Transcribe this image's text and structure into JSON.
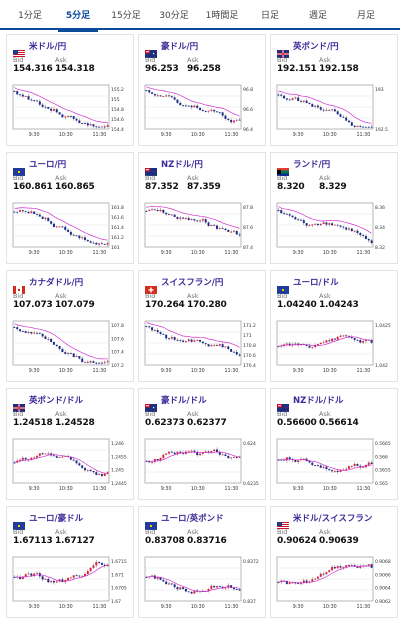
{
  "tabs": [
    {
      "label": "1分足",
      "active": false
    },
    {
      "label": "5分足",
      "active": true
    },
    {
      "label": "15分足",
      "active": false
    },
    {
      "label": "30分足",
      "active": false
    },
    {
      "label": "1時間足",
      "active": false
    },
    {
      "label": "日足",
      "active": false
    },
    {
      "label": "週足",
      "active": false
    },
    {
      "label": "月足",
      "active": false
    }
  ],
  "colors": {
    "accent": "#0a4a9c",
    "pair_text": "#3a2a9a",
    "up": "#e0203a",
    "down": "#1a2a8a",
    "ma": "#d030d0"
  },
  "cards": [
    {
      "pair": "米ドル/円",
      "flag": "us",
      "bid": "154.316",
      "ask": "154.318",
      "times": [
        "9:30",
        "10:30",
        "11:30"
      ],
      "yticks": [
        "155.2",
        "155",
        "154.8",
        "154.6",
        "154.4"
      ],
      "trend": "down"
    },
    {
      "pair": "豪ドル/円",
      "flag": "au",
      "bid": "96.253",
      "ask": "96.258",
      "times": [
        "9:30",
        "10:30",
        "11:30"
      ],
      "yticks": [
        "96.8",
        "96.6",
        "96.4"
      ],
      "trend": "down"
    },
    {
      "pair": "英ポンド/円",
      "flag": "gb",
      "bid": "192.151",
      "ask": "192.158",
      "times": [
        "9:30",
        "10:30",
        "11:30"
      ],
      "yticks": [
        "193",
        "192.5"
      ],
      "trend": "down"
    },
    {
      "pair": "ユーロ/円",
      "flag": "eu",
      "bid": "160.861",
      "ask": "160.865",
      "times": [
        "9:30",
        "10:30",
        "11:30"
      ],
      "yticks": [
        "161.8",
        "161.6",
        "161.4",
        "161.2",
        "161"
      ],
      "trend": "down"
    },
    {
      "pair": "NZドル/円",
      "flag": "nz",
      "bid": "87.352",
      "ask": "87.359",
      "times": [
        "9:30",
        "10:30",
        "11:30"
      ],
      "yticks": [
        "87.8",
        "87.6",
        "87.4"
      ],
      "trend": "down"
    },
    {
      "pair": "ランド/円",
      "flag": "za",
      "bid": "8.320",
      "ask": "8.329",
      "times": [
        "9:30",
        "10:30",
        "11:30"
      ],
      "yticks": [
        "8.36",
        "8.34",
        "8.32"
      ],
      "trend": "down"
    },
    {
      "pair": "カナダドル/円",
      "flag": "ca",
      "bid": "107.073",
      "ask": "107.079",
      "times": [
        "9:30",
        "10:30",
        "11:30"
      ],
      "yticks": [
        "107.8",
        "107.6",
        "107.4",
        "107.2"
      ],
      "trend": "down"
    },
    {
      "pair": "スイスフラン/円",
      "flag": "ch",
      "bid": "170.264",
      "ask": "170.280",
      "times": [
        "9:30",
        "10:30",
        "11:30"
      ],
      "yticks": [
        "171.2",
        "171",
        "170.8",
        "170.6",
        "170.4"
      ],
      "trend": "down"
    },
    {
      "pair": "ユーロ/ドル",
      "flag": "eu",
      "bid": "1.04240",
      "ask": "1.04243",
      "times": [
        "9:30",
        "10:30",
        "11:30"
      ],
      "yticks": [
        "1.0425",
        "1.042"
      ],
      "trend": "flat"
    },
    {
      "pair": "英ポンド/ドル",
      "flag": "gb",
      "bid": "1.24518",
      "ask": "1.24528",
      "times": [
        "9:30",
        "10:30",
        "11:30"
      ],
      "yticks": [
        "1.246",
        "1.2455",
        "1.245",
        "1.2445"
      ],
      "trend": "flat"
    },
    {
      "pair": "豪ドル/ドル",
      "flag": "au",
      "bid": "0.62373",
      "ask": "0.62377",
      "times": [
        "9:30",
        "10:30",
        "11:30"
      ],
      "yticks": [
        "0.624",
        "0.6235"
      ],
      "trend": "flat"
    },
    {
      "pair": "NZドル/ドル",
      "flag": "nz",
      "bid": "0.56600",
      "ask": "0.56614",
      "times": [
        "9:30",
        "10:30",
        "11:30"
      ],
      "yticks": [
        "0.5665",
        "0.566",
        "0.5655",
        "0.565"
      ],
      "trend": "flat"
    },
    {
      "pair": "ユーロ/豪ドル",
      "flag": "eu",
      "bid": "1.67113",
      "ask": "1.67127",
      "times": [
        "9:30",
        "10:30",
        "11:30"
      ],
      "yticks": [
        "1.6715",
        "1.671",
        "1.6705",
        "1.67"
      ],
      "trend": "flat"
    },
    {
      "pair": "ユーロ/英ポンド",
      "flag": "eu",
      "bid": "0.83708",
      "ask": "0.83716",
      "times": [
        "9:30",
        "10:30",
        "11:30"
      ],
      "yticks": [
        "0.8372",
        "0.837"
      ],
      "trend": "flat"
    },
    {
      "pair": "米ドル/スイスフラン",
      "flag": "us",
      "bid": "0.90624",
      "ask": "0.90639",
      "times": [
        "9:30",
        "10:30",
        "11:30"
      ],
      "yticks": [
        "0.9068",
        "0.9066",
        "0.9064",
        "0.9062"
      ],
      "trend": "flat"
    }
  ],
  "labels": {
    "bid": "Bid",
    "ask": "Ask"
  }
}
